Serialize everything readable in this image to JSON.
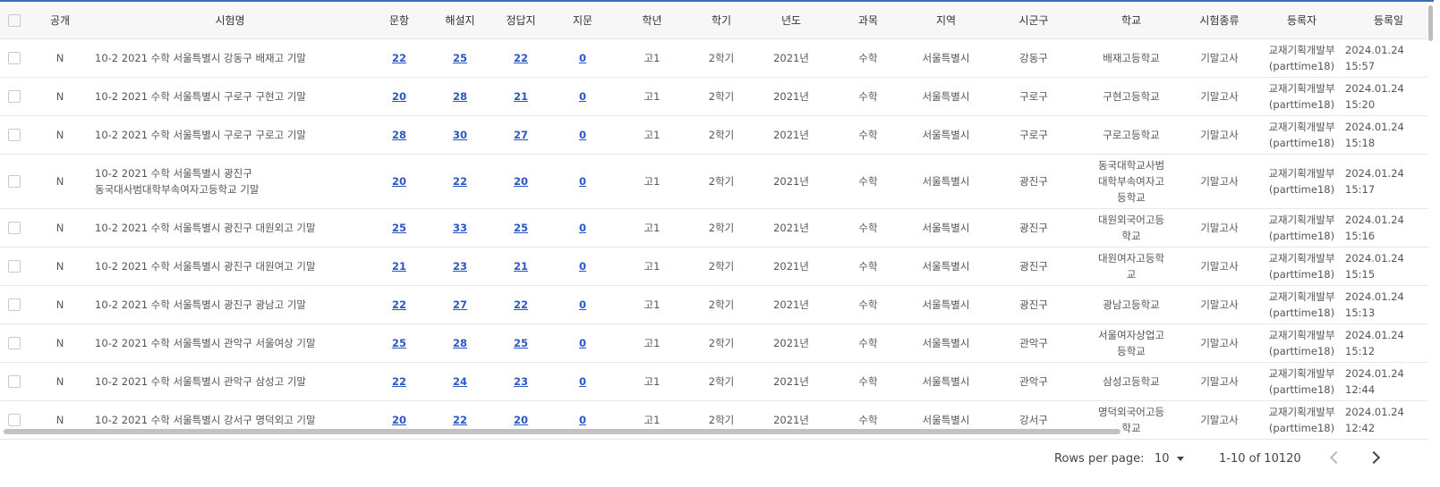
{
  "columns": [
    "공개",
    "시험명",
    "문항",
    "해설지",
    "정답지",
    "지문",
    "학년",
    "학기",
    "년도",
    "과목",
    "지역",
    "시군구",
    "학교",
    "시험종류",
    "등록자",
    "등록일"
  ],
  "rows": [
    {
      "pub": "N",
      "name": "10-2 2021 수학 서울특별시 강동구 배재고 기말",
      "q": "22",
      "exp": "25",
      "ans": "22",
      "pas": "0",
      "grade": "고1",
      "sem": "2학기",
      "year": "2021년",
      "subj": "수학",
      "region": "서울특별시",
      "district": "강동구",
      "school": "배재고등학교",
      "type": "기말고사",
      "reg1": "교재기획개발부",
      "reg2": "(parttime18)",
      "date": "2024.01.24 15:57"
    },
    {
      "pub": "N",
      "name": "10-2 2021 수학 서울특별시 구로구 구현고 기말",
      "q": "20",
      "exp": "28",
      "ans": "21",
      "pas": "0",
      "grade": "고1",
      "sem": "2학기",
      "year": "2021년",
      "subj": "수학",
      "region": "서울특별시",
      "district": "구로구",
      "school": "구현고등학교",
      "type": "기말고사",
      "reg1": "교재기획개발부",
      "reg2": "(parttime18)",
      "date": "2024.01.24 15:20"
    },
    {
      "pub": "N",
      "name": "10-2 2021 수학 서울특별시 구로구 구로고 기말",
      "q": "28",
      "exp": "30",
      "ans": "27",
      "pas": "0",
      "grade": "고1",
      "sem": "2학기",
      "year": "2021년",
      "subj": "수학",
      "region": "서울특별시",
      "district": "구로구",
      "school": "구로고등학교",
      "type": "기말고사",
      "reg1": "교재기획개발부",
      "reg2": "(parttime18)",
      "date": "2024.01.24 15:18"
    },
    {
      "pub": "N",
      "name": "10-2 2021 수학 서울특별시 광진구 동국대사범대학부속여자고등학교 기말",
      "q": "20",
      "exp": "22",
      "ans": "20",
      "pas": "0",
      "grade": "고1",
      "sem": "2학기",
      "year": "2021년",
      "subj": "수학",
      "region": "서울특별시",
      "district": "광진구",
      "school": "동국대학교사범대학부속여자고등학교",
      "type": "기말고사",
      "reg1": "교재기획개발부",
      "reg2": "(parttime18)",
      "date": "2024.01.24 15:17"
    },
    {
      "pub": "N",
      "name": "10-2 2021 수학 서울특별시 광진구 대원외고 기말",
      "q": "25",
      "exp": "33",
      "ans": "25",
      "pas": "0",
      "grade": "고1",
      "sem": "2학기",
      "year": "2021년",
      "subj": "수학",
      "region": "서울특별시",
      "district": "광진구",
      "school": "대원외국어고등학교",
      "type": "기말고사",
      "reg1": "교재기획개발부",
      "reg2": "(parttime18)",
      "date": "2024.01.24 15:16"
    },
    {
      "pub": "N",
      "name": "10-2 2021 수학 서울특별시 광진구 대원여고 기말",
      "q": "21",
      "exp": "23",
      "ans": "21",
      "pas": "0",
      "grade": "고1",
      "sem": "2학기",
      "year": "2021년",
      "subj": "수학",
      "region": "서울특별시",
      "district": "광진구",
      "school": "대원여자고등학교",
      "type": "기말고사",
      "reg1": "교재기획개발부",
      "reg2": "(parttime18)",
      "date": "2024.01.24 15:15"
    },
    {
      "pub": "N",
      "name": "10-2 2021 수학 서울특별시 광진구 광남고 기말",
      "q": "22",
      "exp": "27",
      "ans": "22",
      "pas": "0",
      "grade": "고1",
      "sem": "2학기",
      "year": "2021년",
      "subj": "수학",
      "region": "서울특별시",
      "district": "광진구",
      "school": "광남고등학교",
      "type": "기말고사",
      "reg1": "교재기획개발부",
      "reg2": "(parttime18)",
      "date": "2024.01.24 15:13"
    },
    {
      "pub": "N",
      "name": "10-2 2021 수학 서울특별시 관악구 서울여상 기말",
      "q": "25",
      "exp": "28",
      "ans": "25",
      "pas": "0",
      "grade": "고1",
      "sem": "2학기",
      "year": "2021년",
      "subj": "수학",
      "region": "서울특별시",
      "district": "관악구",
      "school": "서울여자상업고등학교",
      "type": "기말고사",
      "reg1": "교재기획개발부",
      "reg2": "(parttime18)",
      "date": "2024.01.24 15:12"
    },
    {
      "pub": "N",
      "name": "10-2 2021 수학 서울특별시 관악구 삼성고 기말",
      "q": "22",
      "exp": "24",
      "ans": "23",
      "pas": "0",
      "grade": "고1",
      "sem": "2학기",
      "year": "2021년",
      "subj": "수학",
      "region": "서울특별시",
      "district": "관악구",
      "school": "삼성고등학교",
      "type": "기말고사",
      "reg1": "교재기획개발부",
      "reg2": "(parttime18)",
      "date": "2024.01.24 12:44"
    },
    {
      "pub": "N",
      "name": "10-2 2021 수학 서울특별시 강서구 명덕외고 기말",
      "q": "20",
      "exp": "22",
      "ans": "20",
      "pas": "0",
      "grade": "고1",
      "sem": "2학기",
      "year": "2021년",
      "subj": "수학",
      "region": "서울특별시",
      "district": "강서구",
      "school": "명덕외국어고등학교",
      "type": "기말고사",
      "reg1": "교재기획개발부",
      "reg2": "(parttime18)",
      "date": "2024.01.24 12:42"
    }
  ],
  "footer": {
    "rows_per_page_label": "Rows per page:",
    "rows_per_page_value": "10",
    "range_text": "1-10 of 10120"
  },
  "colors": {
    "accent": "#3a6fb5",
    "link": "#2b57c6",
    "header_bg": "#f7f7f7"
  },
  "icons": {
    "prev": "chevron-left-icon",
    "next": "chevron-right-icon",
    "select": "caret-down-icon"
  }
}
